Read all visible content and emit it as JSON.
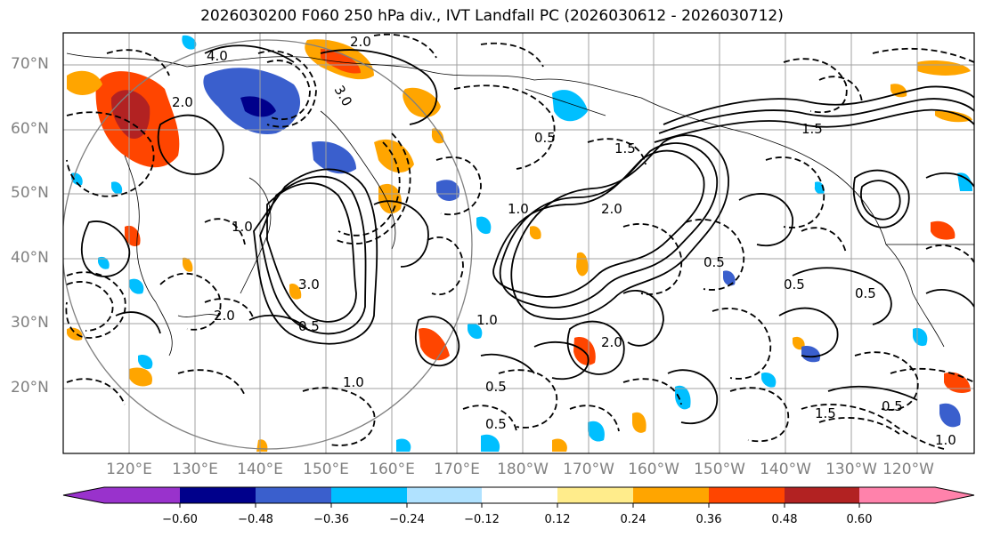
{
  "title": "2026030200 F060 250 hPa div., IVT Landfall PC (2026030612 - 2026030712)",
  "latitude_labels": [
    "70°N",
    "60°N",
    "50°N",
    "40°N",
    "30°N",
    "20°N"
  ],
  "longitude_labels": [
    "120°E",
    "130°E",
    "140°E",
    "150°E",
    "160°E",
    "170°E",
    "180°W",
    "170°W",
    "160°W",
    "150°W",
    "140°W",
    "130°W",
    "120°W"
  ],
  "contour_labels": [
    "2.0",
    "3.0",
    "4.0",
    "2.0",
    "1.0",
    "0.5",
    "1.5",
    "2.0",
    "3.0",
    "2.0",
    "1.0",
    "0.5",
    "1.0",
    "0.5",
    "2.0",
    "0.5",
    "1.5",
    "0.5",
    "0.5",
    "1.0",
    "0.5",
    "1.5",
    "0.5",
    "1.0"
  ],
  "colorbar": {
    "tick_labels": [
      "−0.60",
      "−0.48",
      "−0.36",
      "−0.24",
      "−0.12",
      "0.12",
      "0.24",
      "0.36",
      "0.48",
      "0.60"
    ],
    "colors": [
      "#9932cc",
      "#00008b",
      "#3a5fcd",
      "#00bfff",
      "#b0e2ff",
      "#ffffff",
      "#ffec8b",
      "#ffa500",
      "#ff4500",
      "#b22222",
      "#ff82ab",
      "#ff82ab"
    ]
  }
}
